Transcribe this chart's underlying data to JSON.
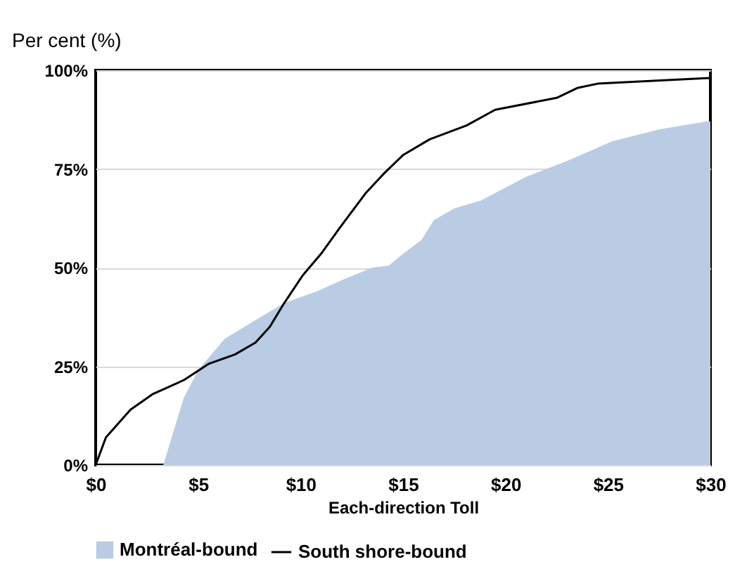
{
  "chart_data": {
    "type": "area",
    "ylabel": "Per cent (%)",
    "xlabel": "Each-direction Toll",
    "xlim": [
      0,
      30
    ],
    "xticks": [
      {
        "value": 0,
        "label": "$0"
      },
      {
        "value": 5,
        "label": "$5"
      },
      {
        "value": 10,
        "label": "$10"
      },
      {
        "value": 15,
        "label": "$15"
      },
      {
        "value": 20,
        "label": "$20"
      },
      {
        "value": 25,
        "label": "$25"
      },
      {
        "value": 30,
        "label": "$30"
      }
    ],
    "ylim": [
      0,
      100
    ],
    "yticks": [
      {
        "value": 0,
        "label": "0%"
      },
      {
        "value": 25,
        "label": "25%"
      },
      {
        "value": 50,
        "label": "50%"
      },
      {
        "value": 75,
        "label": "75%"
      },
      {
        "value": 100,
        "label": "100%"
      }
    ],
    "grid": "y",
    "legend": "bottom",
    "series": [
      {
        "name": "Montréal-bound",
        "color": "#b9cce4",
        "x": [
          3.3,
          4.3,
          5,
          6.3,
          7.9,
          9.2,
          10.8,
          12.1,
          13.5,
          14.3,
          15,
          15.9,
          16.5,
          17.5,
          18.8,
          21,
          23,
          25.2,
          27.5,
          29.8,
          30
        ],
        "values": [
          0,
          17,
          24,
          32,
          37,
          41,
          44,
          47,
          50,
          50.5,
          53.5,
          57,
          62,
          65,
          67,
          73,
          77,
          82,
          85,
          87,
          87
        ]
      },
      {
        "name": "South shore-bound",
        "type": "line",
        "color": "#000000",
        "x": [
          0,
          0.5,
          1.7,
          2.8,
          4.3,
          5.5,
          6.8,
          7.8,
          8.5,
          9.2,
          10.1,
          11,
          11.9,
          13.2,
          14.1,
          15,
          16.3,
          18.1,
          19.5,
          22.5,
          23.5,
          24.5,
          29.8,
          30
        ],
        "values": [
          0,
          7,
          14,
          18,
          21.5,
          25.6,
          28,
          31,
          35,
          41,
          48,
          53.5,
          60,
          69,
          74,
          78.5,
          82.5,
          86,
          90,
          93,
          95.5,
          96.6,
          98,
          98
        ]
      }
    ]
  }
}
